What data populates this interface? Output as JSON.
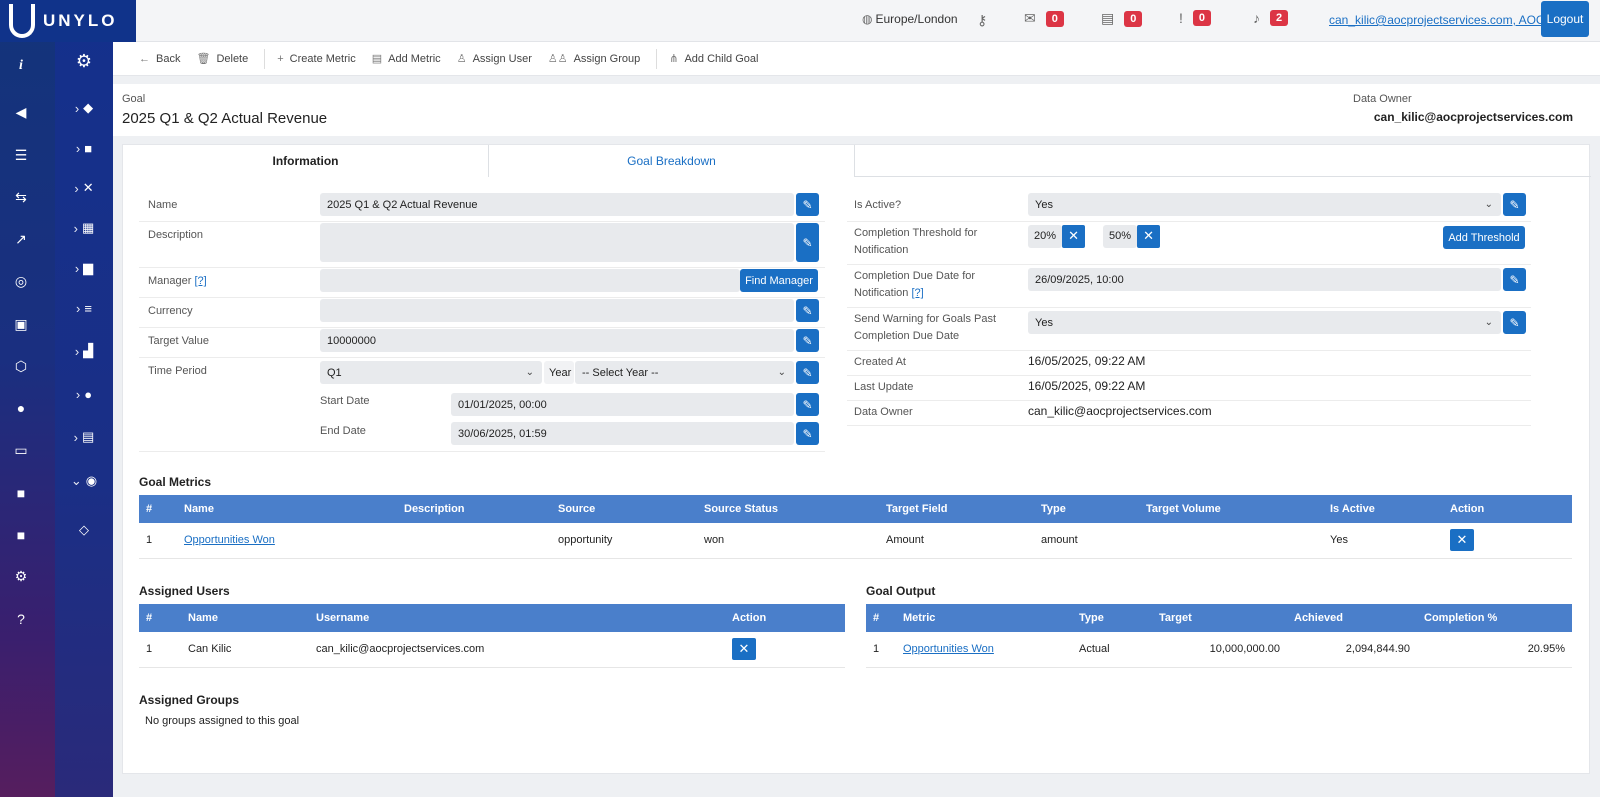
{
  "brand": {
    "name": "UNYLO"
  },
  "topbar": {
    "timezone": "Europe/London",
    "mail_count": "0",
    "chat_count": "0",
    "alert_count": "0",
    "notif_count": "2",
    "user": "can_kilic@aocprojectservices.com, AOC",
    "logout": "Logout"
  },
  "toolbar": {
    "back": "Back",
    "delete": "Delete",
    "create_metric": "Create Metric",
    "add_metric": "Add Metric",
    "assign_user": "Assign User",
    "assign_group": "Assign Group",
    "add_child_goal": "Add Child Goal"
  },
  "header": {
    "label": "Goal",
    "title": "2025 Q1 & Q2 Actual Revenue",
    "owner_label": "Data Owner",
    "owner": "can_kilic@aocprojectservices.com"
  },
  "tabs": {
    "information": "Information",
    "breakdown": "Goal Breakdown"
  },
  "form": {
    "name_label": "Name",
    "name_value": "2025 Q1 & Q2 Actual Revenue",
    "description_label": "Description",
    "manager_label": "Manager",
    "manager_help": "[?]",
    "find_manager": "Find Manager",
    "currency_label": "Currency",
    "target_label": "Target Value",
    "target_value": "10000000",
    "period_label": "Time Period",
    "period_value": "Q1",
    "year_label": "Year",
    "year_value": "-- Select Year --",
    "start_label": "Start Date",
    "start_value": "01/01/2025, 00:00",
    "end_label": "End Date",
    "end_value": "30/06/2025, 01:59"
  },
  "right": {
    "active_label": "Is Active?",
    "active_value": "Yes",
    "threshold_label": "Completion Threshold for Notification",
    "threshold_1": "20%",
    "threshold_2": "50%",
    "add_threshold": "Add Threshold",
    "due_label": "Completion Due Date for Notification",
    "due_help": "[?]",
    "due_value": "26/09/2025, 10:00",
    "warn_label": "Send Warning for Goals Past Completion Due Date",
    "warn_value": "Yes",
    "created_label": "Created At",
    "created_value": "16/05/2025, 09:22 AM",
    "updated_label": "Last Update",
    "updated_value": "16/05/2025, 09:22 AM",
    "owner_label": "Data Owner",
    "owner_value": "can_kilic@aocprojectservices.com"
  },
  "metrics": {
    "title": "Goal Metrics",
    "columns": [
      "#",
      "Name",
      "Description",
      "Source",
      "Source Status",
      "Target Field",
      "Type",
      "Target Volume",
      "Is Active",
      "Action"
    ],
    "rows": [
      {
        "n": "1",
        "name": "Opportunities Won",
        "description": "",
        "source": "opportunity",
        "status": "won",
        "field": "Amount",
        "type": "amount",
        "volume": "",
        "active": "Yes"
      }
    ]
  },
  "users": {
    "title": "Assigned Users",
    "columns": [
      "#",
      "Name",
      "Username",
      "Action"
    ],
    "rows": [
      {
        "n": "1",
        "name": "Can Kilic",
        "username": "can_kilic@aocprojectservices.com"
      }
    ]
  },
  "output": {
    "title": "Goal Output",
    "columns": [
      "#",
      "Metric",
      "Type",
      "Target",
      "Achieved",
      "Completion %"
    ],
    "rows": [
      {
        "n": "1",
        "metric": "Opportunities Won",
        "type": "Actual",
        "target": "10,000,000.00",
        "achieved": "2,094,844.90",
        "completion": "20.95%"
      }
    ]
  },
  "groups": {
    "title": "Assigned Groups",
    "empty": "No groups assigned to this goal"
  }
}
